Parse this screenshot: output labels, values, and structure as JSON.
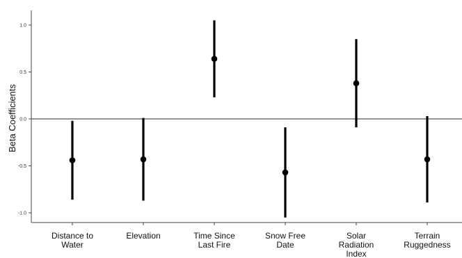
{
  "chart_data": {
    "type": "scatter",
    "ylabel": "Beta Coefficients",
    "xlabel": "",
    "ylim": [
      -1.1,
      1.1
    ],
    "yticks": [
      1.0,
      0.5,
      0.0,
      -0.5,
      -1.0
    ],
    "ytick_labels": [
      "1.0",
      "0.5",
      "0.0",
      "-0.5",
      "-1.0"
    ],
    "reference_line_y": 0,
    "grid": false,
    "categories": [
      [
        "Distance to",
        "Water"
      ],
      [
        "Elevation"
      ],
      [
        "Time Since",
        "Last Fire"
      ],
      [
        "Snow Free",
        "Date"
      ],
      [
        "Solar",
        "Radiation",
        "Index"
      ],
      [
        "Terrain",
        "Ruggedness"
      ]
    ],
    "estimates": [
      -0.44,
      -0.43,
      0.64,
      -0.57,
      0.38,
      -0.43
    ],
    "lower": [
      -0.86,
      -0.87,
      0.23,
      -1.05,
      -0.09,
      -0.89
    ],
    "upper": [
      -0.02,
      0.01,
      1.05,
      -0.09,
      0.85,
      0.03
    ],
    "color": "#000000"
  }
}
